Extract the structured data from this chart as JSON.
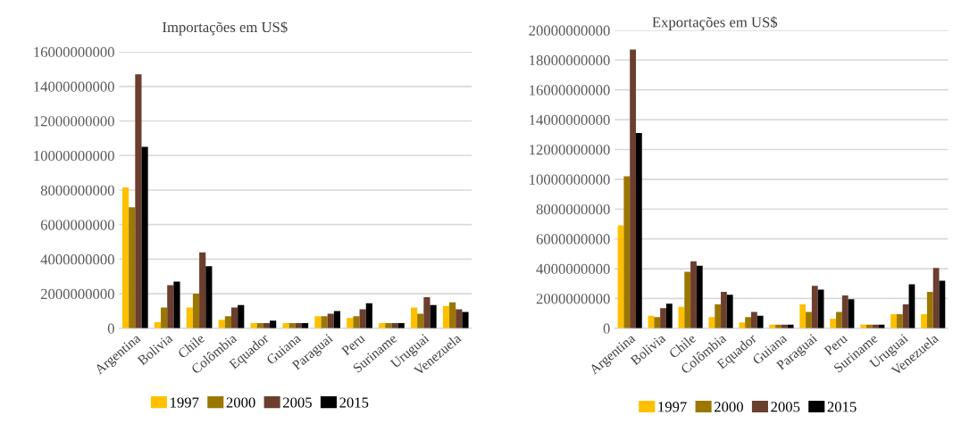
{
  "chart_data": [
    {
      "type": "bar",
      "title": "Importações em US$",
      "categories": [
        "Argentina",
        "Bolivia",
        "Chile",
        "Colômbia",
        "Equador",
        "Guiana",
        "Paraguai",
        "Peru",
        "Suriname",
        "Uruguai",
        "Venezuela"
      ],
      "series": [
        {
          "name": "1997",
          "color": "#ffc000",
          "values": [
            8150000000,
            350000000,
            1200000000,
            500000000,
            300000000,
            300000000,
            700000000,
            600000000,
            300000000,
            1200000000,
            1300000000
          ]
        },
        {
          "name": "2000",
          "color": "#9c7700",
          "values": [
            7000000000,
            1200000000,
            2000000000,
            700000000,
            300000000,
            300000000,
            700000000,
            700000000,
            300000000,
            850000000,
            1500000000
          ]
        },
        {
          "name": "2005",
          "color": "#6b3e2e",
          "values": [
            14700000000,
            2500000000,
            4400000000,
            1200000000,
            300000000,
            300000000,
            850000000,
            1100000000,
            300000000,
            1800000000,
            1100000000
          ]
        },
        {
          "name": "2015",
          "color": "#000000",
          "values": [
            10500000000,
            2700000000,
            3600000000,
            1350000000,
            450000000,
            300000000,
            1000000000,
            1450000000,
            300000000,
            1350000000,
            950000000
          ]
        }
      ],
      "ylim": [
        0,
        16000000000
      ],
      "yticks": [
        0,
        2000000000,
        4000000000,
        6000000000,
        8000000000,
        10000000000,
        12000000000,
        14000000000,
        16000000000
      ],
      "grid": "y",
      "legend": "bottom"
    },
    {
      "type": "bar",
      "title": "Exportações em US$",
      "categories": [
        "Argentina",
        "Bolivia",
        "Chile",
        "Colômbia",
        "Equador",
        "Guiana",
        "Paraguai",
        "Peru",
        "Suriname",
        "Uruguai",
        "Venezuela"
      ],
      "series": [
        {
          "name": "1997",
          "color": "#ffc000",
          "values": [
            6900000000,
            850000000,
            1450000000,
            750000000,
            400000000,
            250000000,
            1600000000,
            650000000,
            250000000,
            950000000,
            950000000
          ]
        },
        {
          "name": "2000",
          "color": "#9c7700",
          "values": [
            10200000000,
            750000000,
            3800000000,
            1600000000,
            750000000,
            250000000,
            1100000000,
            1100000000,
            250000000,
            950000000,
            2450000000
          ]
        },
        {
          "name": "2005",
          "color": "#6b3e2e",
          "values": [
            18700000000,
            1350000000,
            4500000000,
            2450000000,
            1100000000,
            250000000,
            2850000000,
            2200000000,
            250000000,
            1600000000,
            4050000000
          ]
        },
        {
          "name": "2015",
          "color": "#000000",
          "values": [
            13100000000,
            1650000000,
            4200000000,
            2250000000,
            850000000,
            250000000,
            2600000000,
            1950000000,
            250000000,
            2950000000,
            3200000000
          ]
        }
      ],
      "ylim": [
        0,
        20000000000
      ],
      "yticks": [
        0,
        2000000000,
        4000000000,
        6000000000,
        8000000000,
        10000000000,
        12000000000,
        14000000000,
        16000000000,
        18000000000,
        20000000000
      ],
      "grid": "y",
      "legend": "bottom"
    }
  ]
}
